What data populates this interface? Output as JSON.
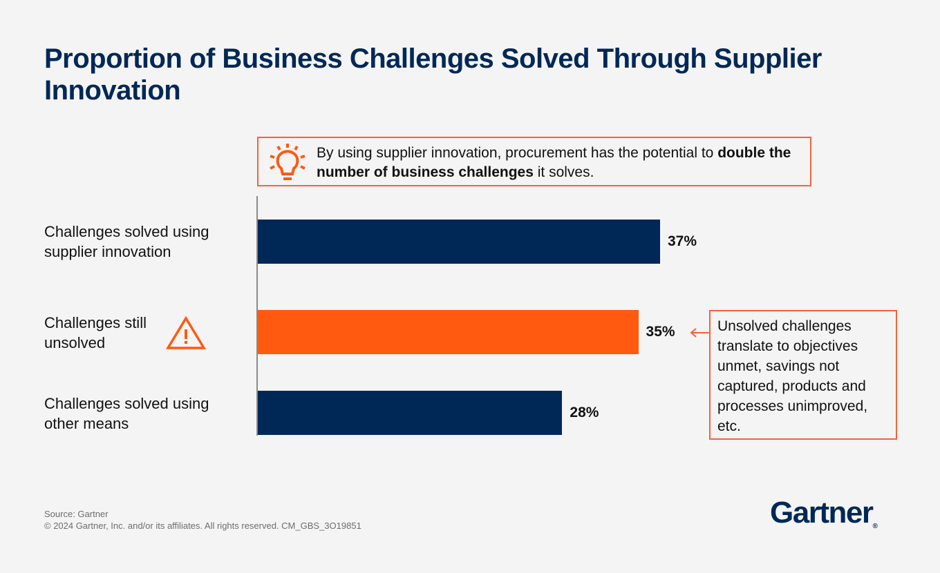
{
  "title": "Proportion of Business Challenges Solved Through Supplier Innovation",
  "callout": {
    "pre": "By using supplier innovation, procurement has the potential to ",
    "bold": "double the number of business challenges",
    "post": " it solves.",
    "icon": "lightbulb-icon"
  },
  "note": "Unsolved challenges translate to objectives unmet, savings not captured, products and processes unimproved, etc.",
  "footer": {
    "source": "Source: Gartner",
    "copyright": "© 2024 Gartner, Inc. and/or its affiliates. All rights reserved. CM_GBS_3O19851"
  },
  "logo": "Gartner",
  "colors": {
    "navy": "#002856",
    "orange": "#ff5a0f",
    "accent_border": "#f5623a"
  },
  "chart_data": {
    "type": "bar",
    "orientation": "horizontal",
    "categories": [
      "Challenges solved using supplier innovation",
      "Challenges still unsolved",
      "Challenges solved using other means"
    ],
    "values": [
      37,
      35,
      28
    ],
    "value_labels": [
      "37%",
      "35%",
      "28%"
    ],
    "bar_colors": [
      "#002856",
      "#ff5a0f",
      "#002856"
    ],
    "unit": "%",
    "xlim": [
      0,
      50
    ],
    "grid": false,
    "annotations": [
      "warning-icon next to Challenges still unsolved"
    ]
  }
}
